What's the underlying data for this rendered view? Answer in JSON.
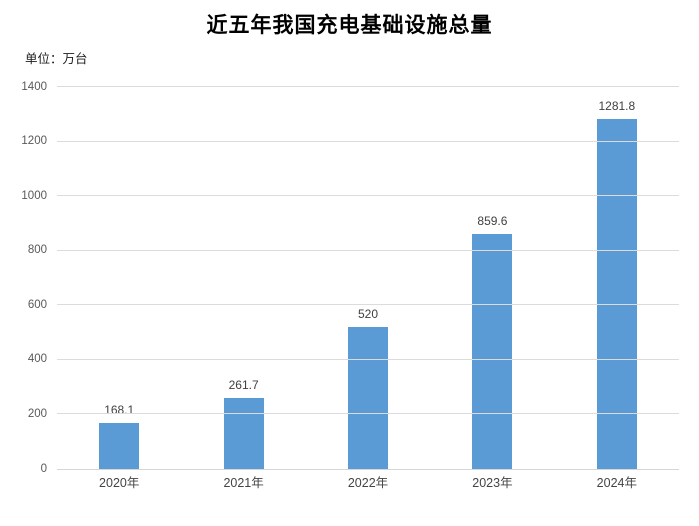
{
  "title": "近五年我国充电基础设施总量",
  "unit_label": "单位：万台",
  "chart_data": {
    "type": "bar",
    "title": "近五年我国充电基础设施总量",
    "xlabel": "",
    "ylabel": "单位：万台",
    "categories": [
      "2020年",
      "2021年",
      "2022年",
      "2023年",
      "2024年"
    ],
    "values": [
      168.1,
      261.7,
      520,
      859.6,
      1281.8
    ],
    "value_labels": [
      "168.1",
      "261.7",
      "520",
      "859.6",
      "1281.8"
    ],
    "ylim": [
      0,
      1400
    ],
    "ytick_step": 200,
    "ytick_labels": [
      "0",
      "200",
      "400",
      "600",
      "800",
      "1000",
      "1200",
      "1400"
    ],
    "grid": true,
    "legend": "none",
    "colors": {
      "bar": "#5B9BD5",
      "gridline": "#dcdcdc",
      "baseline": "#d6d6d6",
      "ytick_text": "#595959",
      "xtick_text": "#444444",
      "value_label_text": "#404040",
      "background": "#ffffff"
    }
  }
}
